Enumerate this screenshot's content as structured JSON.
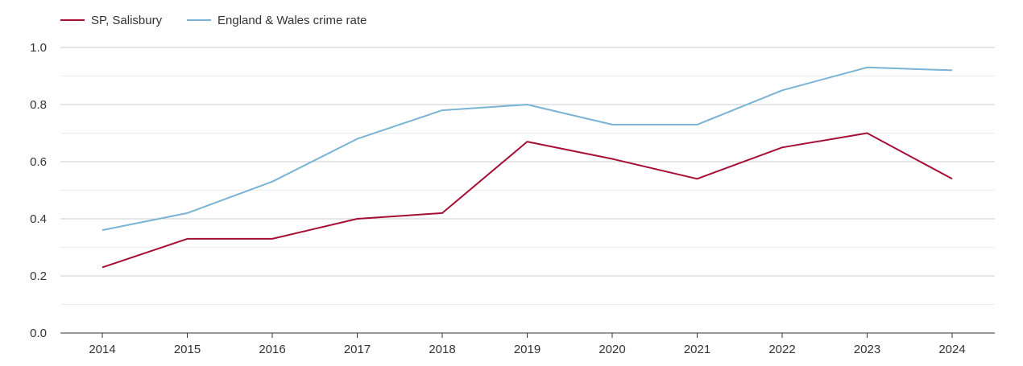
{
  "chart_data": {
    "type": "line",
    "x": [
      "2014",
      "2015",
      "2016",
      "2017",
      "2018",
      "2019",
      "2020",
      "2021",
      "2022",
      "2023",
      "2024"
    ],
    "series": [
      {
        "name": "SP, Salisbury",
        "color": "#a50f33",
        "values": [
          0.23,
          0.33,
          0.33,
          0.4,
          0.42,
          0.67,
          0.61,
          0.54,
          0.65,
          0.7,
          0.54
        ]
      },
      {
        "name": "England & Wales crime rate",
        "color": "#7ab3d4",
        "values": [
          0.36,
          0.42,
          0.53,
          0.68,
          0.78,
          0.8,
          0.73,
          0.73,
          0.85,
          0.93,
          0.92
        ]
      }
    ],
    "ylim": [
      0,
      1.0
    ],
    "yticks": [
      "0.0",
      "0.2",
      "0.4",
      "0.6",
      "0.8",
      "1.0"
    ],
    "grid": true,
    "legend_position": "top-left",
    "title": "",
    "xlabel": "",
    "ylabel": ""
  }
}
